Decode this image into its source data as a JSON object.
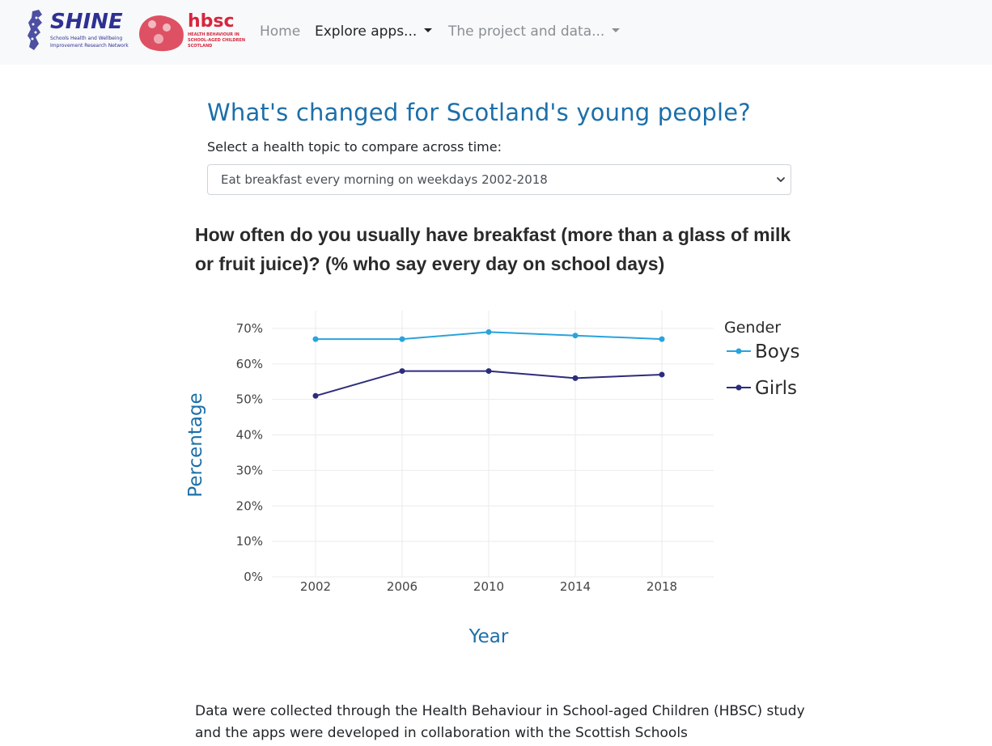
{
  "navbar": {
    "shine_logo": {
      "name": "SHINE",
      "subtitle_line1": "Schools Health and Wellbeing",
      "subtitle_line2": "Improvement Research Network"
    },
    "hbsc_logo": {
      "name": "hbsc",
      "subtitle_line1": "HEALTH BEHAVIOUR IN",
      "subtitle_line2": "SCHOOL-AGED CHILDREN",
      "subtitle_line3": "SCOTLAND"
    },
    "links": {
      "home": "Home",
      "explore": "Explore apps...",
      "project": "The project and data..."
    }
  },
  "main": {
    "title": "What's changed for Scotland's young people?",
    "select_label": "Select a health topic to compare across time:",
    "select_value": "Eat breakfast every morning on weekdays 2002-2018"
  },
  "chart_title": "How often do you usually have breakfast (more than a glass of milk or fruit juice)? (% who say every day on school days)",
  "chart_data": {
    "type": "line",
    "x": [
      "2002",
      "2006",
      "2010",
      "2014",
      "2018"
    ],
    "xlabel": "Year",
    "ylabel": "Percentage",
    "ylim": [
      0,
      0.75
    ],
    "yticks": [
      "0%",
      "10%",
      "20%",
      "30%",
      "40%",
      "50%",
      "60%",
      "70%"
    ],
    "grid": true,
    "legend_title": "Gender",
    "legend_position": "top-right",
    "series": [
      {
        "name": "Boys",
        "color": "#29a3dc",
        "values": [
          0.67,
          0.67,
          0.69,
          0.68,
          0.67
        ]
      },
      {
        "name": "Girls",
        "color": "#2c2c7c",
        "values": [
          0.51,
          0.58,
          0.58,
          0.56,
          0.57
        ]
      }
    ]
  },
  "footer": {
    "text": "Data were collected through the Health Behaviour in School-aged Children (HBSC) study and the apps were developed in collaboration with the Scottish Schools"
  },
  "colors": {
    "title_blue": "#1c6fa9",
    "navbar_bg": "#f8f9fa",
    "shine_navy": "#2e3192",
    "hbsc_red": "#d7263d"
  }
}
